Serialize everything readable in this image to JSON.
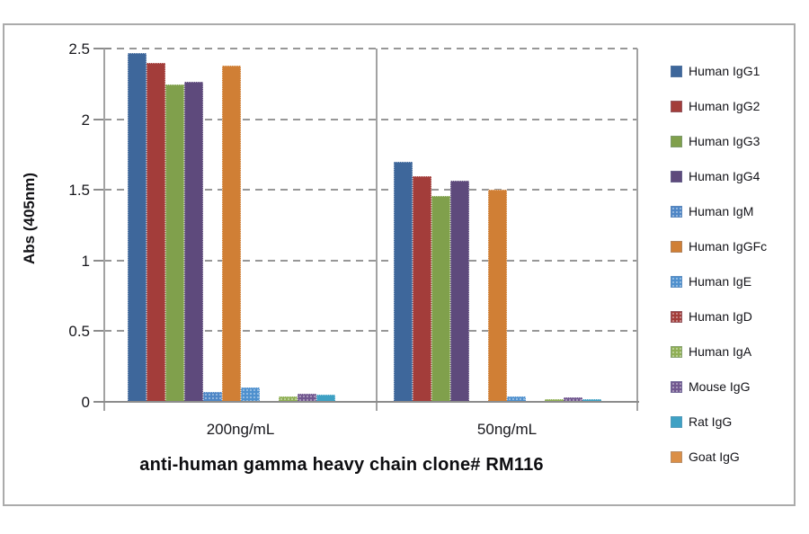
{
  "chart_data": {
    "type": "bar",
    "title": "anti-human gamma heavy chain clone# RM116",
    "ylabel": "Abs (405nm)",
    "xlabel": "",
    "categories": [
      "200ng/mL",
      "50ng/mL"
    ],
    "series": [
      {
        "name": "Human IgG1",
        "color": "#3E679B",
        "pattern": false,
        "values": [
          2.47,
          1.7
        ]
      },
      {
        "name": "Human IgG2",
        "color": "#A33D3A",
        "pattern": false,
        "values": [
          2.4,
          1.6
        ]
      },
      {
        "name": "Human IgG3",
        "color": "#80A04C",
        "pattern": false,
        "values": [
          2.25,
          1.46
        ]
      },
      {
        "name": "Human IgG4",
        "color": "#5E4A7C",
        "pattern": false,
        "values": [
          2.27,
          1.57
        ]
      },
      {
        "name": "Human IgM",
        "color": "#4E86C6",
        "pattern": true,
        "values": [
          0.07,
          0
        ]
      },
      {
        "name": "Human IgGFc",
        "color": "#D07F35",
        "pattern": false,
        "values": [
          2.38,
          1.5
        ]
      },
      {
        "name": "Human IgE",
        "color": "#4E90CE",
        "pattern": true,
        "values": [
          0.1,
          0.04
        ]
      },
      {
        "name": "Human IgD",
        "color": "#A33D3A",
        "pattern": true,
        "values": [
          0,
          0
        ]
      },
      {
        "name": "Human IgA",
        "color": "#8FAF54",
        "pattern": true,
        "values": [
          0.04,
          0.02
        ]
      },
      {
        "name": "Mouse IgG",
        "color": "#71578F",
        "pattern": true,
        "values": [
          0.06,
          0.03
        ]
      },
      {
        "name": "Rat IgG",
        "color": "#3FA1C4",
        "pattern": false,
        "values": [
          0.05,
          0.02
        ]
      },
      {
        "name": "Goat IgG",
        "color": "#DB8F47",
        "pattern": false,
        "values": [
          0,
          0
        ]
      }
    ],
    "ylim": [
      0,
      2.5
    ],
    "yticks": [
      0,
      0.5,
      1,
      1.5,
      2,
      2.5
    ],
    "grid": "dashed-horizontal",
    "legend_position": "right",
    "colors": {
      "gridline": "#979797",
      "axis": "#8c8c8c",
      "frame_border": "#ababab",
      "text": "#17171c"
    }
  }
}
